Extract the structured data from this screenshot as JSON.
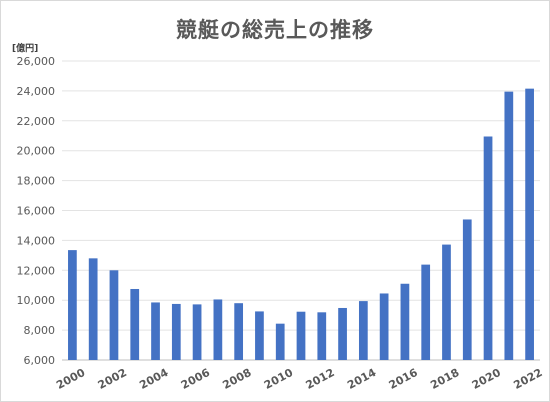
{
  "chart_data": {
    "type": "bar",
    "title": "競艇の総売上の推移",
    "ylabel": "[億円]",
    "xlabel": "",
    "categories": [
      "2000",
      "2001",
      "2002",
      "2003",
      "2004",
      "2005",
      "2006",
      "2007",
      "2008",
      "2009",
      "2010",
      "2011",
      "2012",
      "2013",
      "2014",
      "2015",
      "2016",
      "2017",
      "2018",
      "2019",
      "2020",
      "2021",
      "2022"
    ],
    "x_tick_labels": [
      "2000",
      "2002",
      "2004",
      "2006",
      "2008",
      "2010",
      "2012",
      "2014",
      "2016",
      "2018",
      "2020",
      "2022"
    ],
    "values": [
      13350,
      12800,
      12000,
      10750,
      9850,
      9750,
      9720,
      10050,
      9800,
      9250,
      8430,
      9230,
      9190,
      9480,
      9940,
      10450,
      11100,
      12380,
      13720,
      15400,
      20950,
      23950,
      24150
    ],
    "ylim": [
      6000,
      26000
    ],
    "y_ticks": [
      "6,000",
      "8,000",
      "10,000",
      "12,000",
      "14,000",
      "16,000",
      "18,000",
      "20,000",
      "22,000",
      "24,000",
      "26,000"
    ],
    "grid": true,
    "bar_color": "#4472c4"
  }
}
